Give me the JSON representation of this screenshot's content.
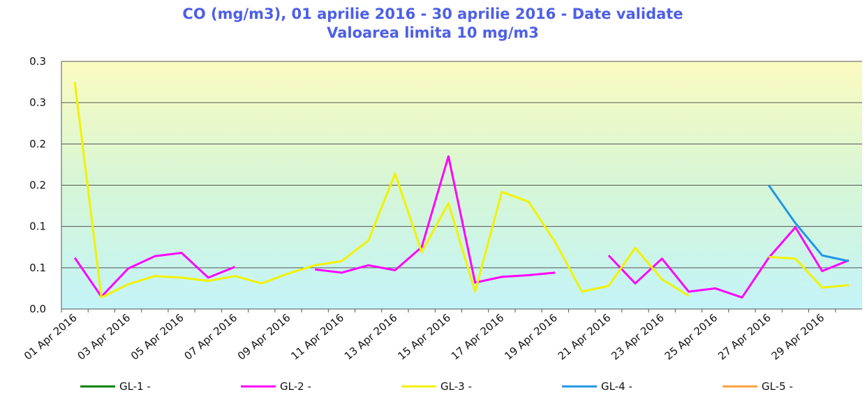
{
  "chart_data": {
    "type": "line",
    "title": "CO (mg/m3), 01 aprilie 2016 - 30 aprilie 2016 - Date validate",
    "subtitle": "Valoarea limita 10 mg/m3",
    "categories": [
      "01 Apr 2016",
      null,
      "03 Apr 2016",
      null,
      "05 Apr 2016",
      null,
      "07 Apr 2016",
      null,
      "09 Apr 2016",
      null,
      "11 Apr 2016",
      null,
      "13 Apr 2016",
      null,
      "15 Apr 2016",
      null,
      "17 Apr 2016",
      null,
      "19 Apr 2016",
      null,
      "21 Apr 2016",
      null,
      "23 Apr 2016",
      null,
      "25 Apr 2016",
      null,
      "27 Apr 2016",
      null,
      "29 Apr 2016",
      null
    ],
    "ylim": [
      0,
      0.3
    ],
    "yticks": [
      {
        "value": 0,
        "label": "0.0"
      },
      {
        "value": 0.05,
        "label": "0.1"
      },
      {
        "value": 0.1,
        "label": "0.1"
      },
      {
        "value": 0.15,
        "label": "0.2"
      },
      {
        "value": 0.2,
        "label": "0.2"
      },
      {
        "value": 0.25,
        "label": "0.3"
      },
      {
        "value": 0.3,
        "label": "0.3"
      }
    ],
    "grid": true,
    "legend": "bottom",
    "series": [
      {
        "name": "GL-1 -",
        "color": "#008000",
        "values": [
          null,
          null,
          null,
          null,
          null,
          null,
          null,
          null,
          null,
          null,
          null,
          null,
          null,
          null,
          null,
          null,
          null,
          null,
          null,
          null,
          null,
          null,
          null,
          null,
          null,
          null,
          null,
          null,
          null,
          null
        ]
      },
      {
        "name": "GL-2 -",
        "color": "#ff00ff",
        "values": [
          0.062,
          0.015,
          0.049,
          0.064,
          0.068,
          0.038,
          0.051,
          null,
          null,
          0.048,
          0.044,
          0.053,
          0.047,
          0.075,
          0.185,
          0.032,
          0.039,
          0.041,
          0.044,
          null,
          0.065,
          0.031,
          0.061,
          0.021,
          0.025,
          0.014,
          0.062,
          0.099,
          0.046,
          0.059
        ]
      },
      {
        "name": "GL-3 -",
        "color": "#f2f200",
        "values": [
          0.275,
          0.014,
          0.03,
          0.04,
          0.038,
          0.034,
          0.04,
          0.031,
          0.043,
          0.053,
          0.058,
          0.083,
          0.164,
          0.069,
          0.128,
          0.021,
          0.142,
          0.13,
          0.081,
          0.021,
          0.028,
          0.074,
          0.036,
          0.016,
          null,
          null,
          0.063,
          0.061,
          0.026,
          0.029
        ]
      },
      {
        "name": "GL-4 -",
        "color": "#2196e6",
        "values": [
          null,
          null,
          null,
          null,
          null,
          null,
          null,
          null,
          null,
          null,
          null,
          null,
          null,
          null,
          null,
          null,
          null,
          null,
          null,
          null,
          null,
          null,
          null,
          null,
          null,
          null,
          0.15,
          0.104,
          0.065,
          0.058
        ]
      },
      {
        "name": "GL-5 -",
        "color": "#ffa040",
        "values": [
          null,
          null,
          null,
          null,
          null,
          null,
          null,
          null,
          null,
          null,
          null,
          null,
          null,
          null,
          null,
          null,
          null,
          null,
          null,
          null,
          null,
          null,
          null,
          null,
          null,
          null,
          null,
          null,
          null,
          null
        ]
      }
    ]
  }
}
